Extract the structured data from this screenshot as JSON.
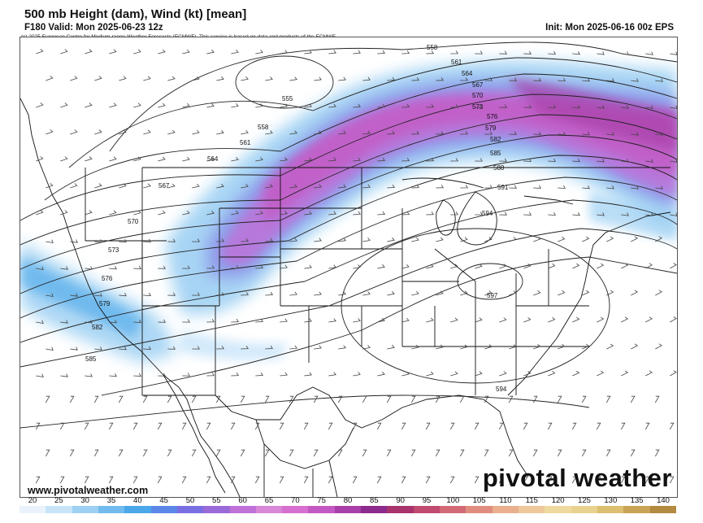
{
  "header": {
    "title": "500 mb Height (dam), Wind (kt) [mean]",
    "valid": "F180 Valid: Mon 2025-06-23 12z",
    "init": "Init: Mon 2025-06-16 00z EPS",
    "copyright": "(c) 2025 European Centre for Medium-range Weather Forecasts (ECMWF). This service is based on data and products of the ECMWF."
  },
  "footer": {
    "site_url": "www.pivotalweather.com",
    "logo": "pivotal weather"
  },
  "contour_labels": [
    "555",
    "558",
    "561",
    "564",
    "567",
    "570",
    "573",
    "576",
    "579",
    "582",
    "585",
    "588",
    "591",
    "594",
    "597"
  ],
  "colorbar": {
    "labels": [
      "20",
      "25",
      "30",
      "35",
      "40",
      "45",
      "50",
      "55",
      "60",
      "65",
      "70",
      "75",
      "80",
      "85",
      "90",
      "95",
      "100",
      "105",
      "110",
      "115",
      "120",
      "125",
      "130",
      "135",
      "140"
    ],
    "colors": [
      "#eaf3fc",
      "#c8e4f9",
      "#9ed0f3",
      "#72bbee",
      "#4aa7ea",
      "#5c86e8",
      "#7a6fe2",
      "#9a6ad9",
      "#c071d8",
      "#d888d6",
      "#d66fcf",
      "#c458c2",
      "#a93fa9",
      "#8c2a8d",
      "#a8336d",
      "#c04a70",
      "#d26a76",
      "#e08d80",
      "#eab08e",
      "#eec79a",
      "#efd99f",
      "#e9d290",
      "#ddbf70",
      "#c9a355",
      "#b38a3f"
    ]
  }
}
